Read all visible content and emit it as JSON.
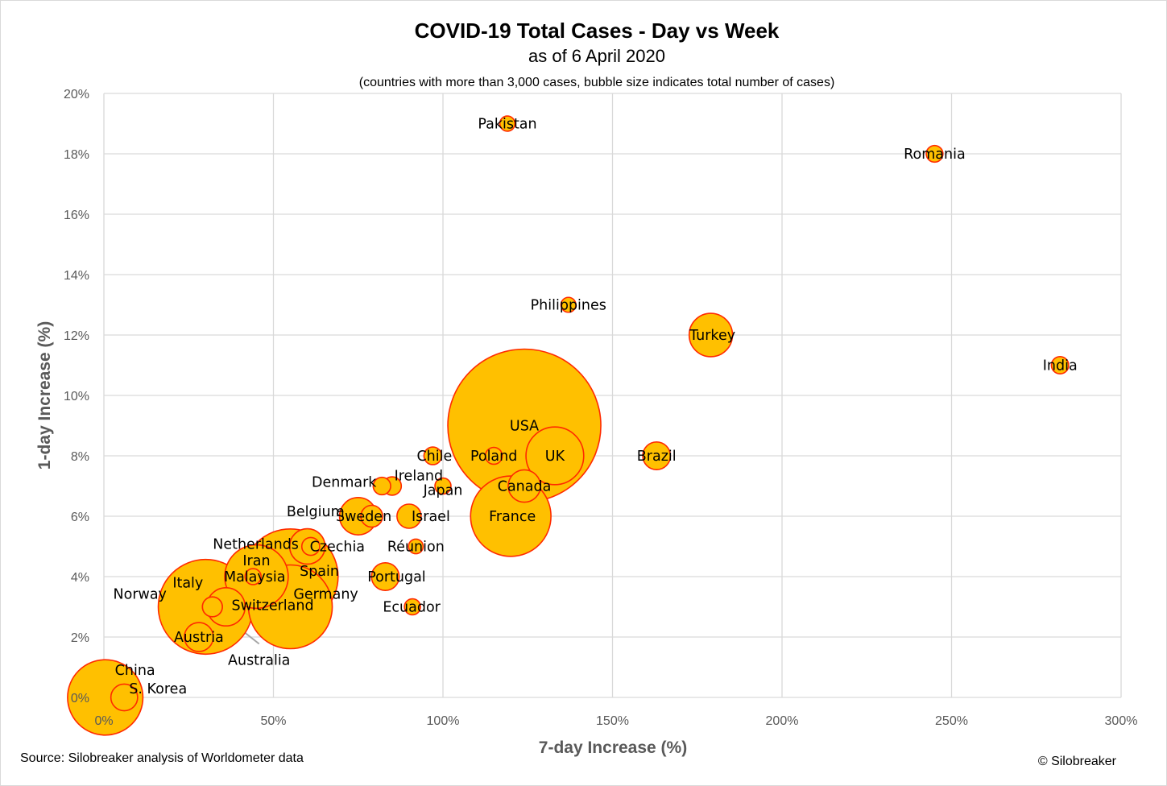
{
  "chart_data": {
    "type": "bubble",
    "title": "COVID-19 Total Cases - Day vs Week",
    "subtitle": "as of 6 April 2020",
    "note": "(countries with more than 3,000 cases, bubble size indicates total number of cases)",
    "xlabel": "7-day Increase (%)",
    "ylabel": "1-day Increase (%)",
    "xlim": [
      0,
      300
    ],
    "ylim": [
      0,
      20
    ],
    "x_ticks": [
      0,
      50,
      100,
      150,
      200,
      250,
      300
    ],
    "y_ticks": [
      0,
      2,
      4,
      6,
      8,
      10,
      12,
      14,
      16,
      18,
      20
    ],
    "x_tick_labels": [
      "0%",
      "50%",
      "100%",
      "150%",
      "200%",
      "250%",
      "300%"
    ],
    "y_tick_labels": [
      "0%",
      "2%",
      "4%",
      "6%",
      "8%",
      "10%",
      "12%",
      "14%",
      "16%",
      "18%",
      "20%"
    ],
    "grid": true,
    "colors": {
      "fill": "#FFC000",
      "stroke": "#FF2A00",
      "grid": "#d9d9d9",
      "axis_text": "#595959",
      "leader": "#a6a6a6"
    },
    "points": [
      {
        "label": "USA",
        "x": 124,
        "y": 9,
        "size": 337000
      },
      {
        "label": "Spain",
        "x": 55,
        "y": 4,
        "size": 131000
      },
      {
        "label": "Italy",
        "x": 30,
        "y": 3,
        "size": 129000
      },
      {
        "label": "Germany",
        "x": 55,
        "y": 3,
        "size": 101000
      },
      {
        "label": "France",
        "x": 120,
        "y": 6,
        "size": 93000
      },
      {
        "label": "China",
        "x": 0.4,
        "y": 0,
        "size": 81700
      },
      {
        "label": "Iran",
        "x": 45,
        "y": 4,
        "size": 58000
      },
      {
        "label": "UK",
        "x": 133,
        "y": 8,
        "size": 48000
      },
      {
        "label": "Turkey",
        "x": 179,
        "y": 12,
        "size": 27000
      },
      {
        "label": "Switzerland",
        "x": 36,
        "y": 3,
        "size": 21000
      },
      {
        "label": "Belgium",
        "x": 75,
        "y": 6,
        "size": 20000
      },
      {
        "label": "Netherlands",
        "x": 60,
        "y": 5,
        "size": 18000
      },
      {
        "label": "Canada",
        "x": 124,
        "y": 7,
        "size": 15000
      },
      {
        "label": "Austria",
        "x": 28,
        "y": 2,
        "size": 12000
      },
      {
        "label": "Brazil",
        "x": 163,
        "y": 8,
        "size": 11000
      },
      {
        "label": "Portugal",
        "x": 83,
        "y": 4,
        "size": 11000
      },
      {
        "label": "S. Korea",
        "x": 6,
        "y": 0,
        "size": 10300
      },
      {
        "label": "Israel",
        "x": 90,
        "y": 6,
        "size": 8400
      },
      {
        "label": "Sweden",
        "x": 79,
        "y": 6,
        "size": 6800
      },
      {
        "label": "Norway",
        "x": 32,
        "y": 3,
        "size": 5700
      },
      {
        "label": "Australia",
        "x": 32,
        "y": 3,
        "size": 5700
      },
      {
        "label": "Czechia",
        "x": 61,
        "y": 5,
        "size": 4600
      },
      {
        "label": "Ireland",
        "x": 85,
        "y": 7,
        "size": 4900
      },
      {
        "label": "Denmark",
        "x": 82,
        "y": 7,
        "size": 4400
      },
      {
        "label": "Chile",
        "x": 97,
        "y": 8,
        "size": 4500
      },
      {
        "label": "Malaysia",
        "x": 44,
        "y": 4,
        "size": 3700
      },
      {
        "label": "Poland",
        "x": 115,
        "y": 8,
        "size": 4100
      },
      {
        "label": "Romania",
        "x": 245,
        "y": 18,
        "size": 4000
      },
      {
        "label": "Ecuador",
        "x": 91,
        "y": 3,
        "size": 3700
      },
      {
        "label": "Japan",
        "x": 100,
        "y": 7,
        "size": 3700
      },
      {
        "label": "Pakistan",
        "x": 119,
        "y": 19,
        "size": 3300
      },
      {
        "label": "Philippines",
        "x": 137,
        "y": 13,
        "size": 3200
      },
      {
        "label": "India",
        "x": 282,
        "y": 11,
        "size": 4300
      },
      {
        "label": "Réunion",
        "x": 92,
        "y": 5,
        "size": 3100
      }
    ]
  },
  "footer": {
    "source": "Source: Silobreaker analysis of Worldometer data",
    "credit": "© Silobreaker"
  }
}
